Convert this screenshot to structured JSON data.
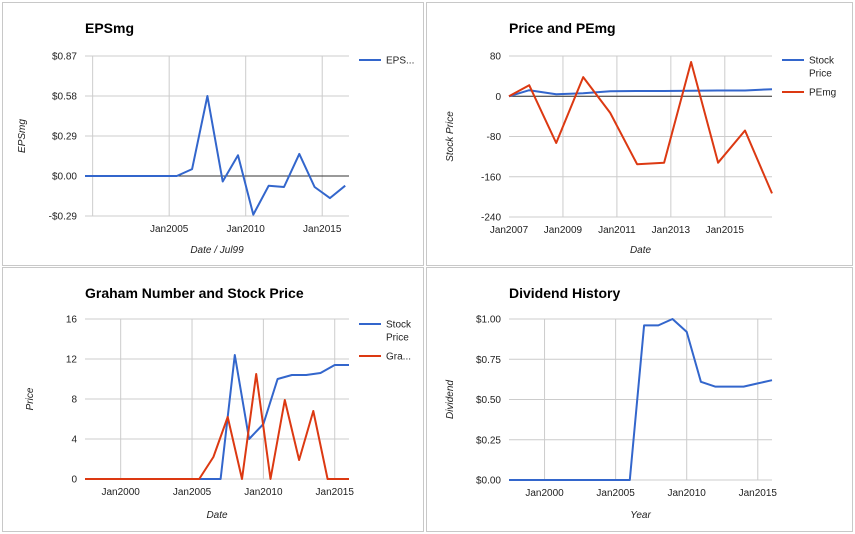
{
  "colors": {
    "blue": "#3366cc",
    "red": "#dc3912",
    "grid": "#cccccc",
    "zero": "#333333"
  },
  "chart_data": [
    {
      "type": "line",
      "title": "EPSmg",
      "xlabel": "Date / Jul99",
      "ylabel": "EPSmg",
      "legend_position": "right",
      "grid": true,
      "xlim": [
        1999.5,
        2016.75
      ],
      "ylim": [
        -0.29,
        0.87
      ],
      "yticks": [
        {
          "value": 0.87,
          "label": "$0.87"
        },
        {
          "value": 0.58,
          "label": "$0.58"
        },
        {
          "value": 0.29,
          "label": "$0.29"
        },
        {
          "value": 0.0,
          "label": "$0.00"
        },
        {
          "value": -0.29,
          "label": "-$0.29"
        }
      ],
      "xticks": [
        {
          "value": 2005,
          "label": "Jan2005"
        },
        {
          "value": 2010,
          "label": "Jan2010"
        },
        {
          "value": 2015,
          "label": "Jan2015"
        }
      ],
      "xgrid": [
        2000,
        2005,
        2010,
        2015
      ],
      "zero_line": 0,
      "series": [
        {
          "name": "EPS...",
          "color": "#3366cc",
          "x": [
            1999.5,
            2000.5,
            2001.5,
            2002.5,
            2003.5,
            2004.5,
            2005.5,
            2006.5,
            2007.5,
            2008.5,
            2009.5,
            2010.5,
            2011.5,
            2012.5,
            2013.5,
            2014.5,
            2015.5,
            2016.5
          ],
          "y": [
            0.0,
            0.0,
            0.0,
            0.0,
            0.0,
            0.0,
            0.0,
            0.05,
            0.58,
            -0.04,
            0.15,
            -0.28,
            -0.07,
            -0.08,
            0.16,
            -0.08,
            -0.16,
            -0.07
          ]
        }
      ]
    },
    {
      "type": "line",
      "title": "Price and PEmg",
      "xlabel": "Date",
      "ylabel": "Stock Price",
      "legend_position": "right",
      "grid": true,
      "xlim": [
        2007.0,
        2016.75
      ],
      "ylim": [
        -240,
        80
      ],
      "yticks": [
        {
          "value": 80,
          "label": "80"
        },
        {
          "value": 0,
          "label": "0"
        },
        {
          "value": -80,
          "label": "-80"
        },
        {
          "value": -160,
          "label": "-160"
        },
        {
          "value": -240,
          "label": "-240"
        }
      ],
      "xticks": [
        {
          "value": 2007,
          "label": "Jan2007"
        },
        {
          "value": 2009,
          "label": "Jan2009"
        },
        {
          "value": 2011,
          "label": "Jan2011"
        },
        {
          "value": 2013,
          "label": "Jan2013"
        },
        {
          "value": 2015,
          "label": "Jan2015"
        }
      ],
      "xgrid": [
        2009,
        2011,
        2013,
        2015
      ],
      "zero_line": 0,
      "series": [
        {
          "name": "Stock Price",
          "color": "#3366cc",
          "x": [
            2007.0,
            2007.75,
            2008.75,
            2009.75,
            2010.75,
            2011.75,
            2012.75,
            2013.75,
            2014.75,
            2015.75,
            2016.75
          ],
          "y": [
            0,
            12,
            4,
            6,
            10,
            10.5,
            10.5,
            11,
            11.5,
            11.5,
            14
          ]
        },
        {
          "name": "PEmg",
          "color": "#dc3912",
          "x": [
            2007.0,
            2007.75,
            2008.75,
            2009.75,
            2010.75,
            2011.75,
            2012.75,
            2013.75,
            2014.75,
            2015.75,
            2016.75
          ],
          "y": [
            0,
            22,
            -93,
            38,
            -33,
            -135,
            -132,
            68,
            -132,
            -68,
            -193
          ]
        }
      ]
    },
    {
      "type": "line",
      "title": "Graham Number and Stock Price",
      "xlabel": "Date",
      "ylabel": "Price",
      "legend_position": "right",
      "grid": true,
      "xlim": [
        1997.5,
        2016.0
      ],
      "ylim": [
        0,
        16
      ],
      "yticks": [
        {
          "value": 16,
          "label": "16"
        },
        {
          "value": 12,
          "label": "12"
        },
        {
          "value": 8,
          "label": "8"
        },
        {
          "value": 4,
          "label": "4"
        },
        {
          "value": 0,
          "label": "0"
        }
      ],
      "xticks": [
        {
          "value": 2000,
          "label": "Jan2000"
        },
        {
          "value": 2005,
          "label": "Jan2005"
        },
        {
          "value": 2010,
          "label": "Jan2010"
        },
        {
          "value": 2015,
          "label": "Jan2015"
        }
      ],
      "xgrid": [
        2000,
        2005,
        2010,
        2015
      ],
      "series": [
        {
          "name": "Stock Price",
          "color": "#3366cc",
          "x": [
            1997.5,
            2007.0,
            2008.0,
            2009.0,
            2010.0,
            2011.0,
            2012.0,
            2013.0,
            2014.0,
            2015.0,
            2016.0
          ],
          "y": [
            0,
            0,
            12.4,
            4.0,
            5.5,
            10.0,
            10.4,
            10.4,
            10.6,
            11.4,
            11.4
          ]
        },
        {
          "name": "Gra...",
          "color": "#dc3912",
          "x": [
            1997.5,
            2005.5,
            2006.5,
            2007.5,
            2008.5,
            2009.5,
            2010.5,
            2011.5,
            2012.5,
            2013.5,
            2014.5,
            2015.5,
            2016.0
          ],
          "y": [
            0,
            0,
            2.2,
            6.2,
            0,
            10.5,
            0,
            7.9,
            1.9,
            6.8,
            0,
            0,
            0
          ]
        }
      ]
    },
    {
      "type": "line",
      "title": "Dividend History",
      "xlabel": "Year",
      "ylabel": "Dividend",
      "legend_position": "none",
      "grid": true,
      "xlim": [
        1997.5,
        2016.0
      ],
      "ylim": [
        0,
        1.0
      ],
      "yticks": [
        {
          "value": 1.0,
          "label": "$1.00"
        },
        {
          "value": 0.75,
          "label": "$0.75"
        },
        {
          "value": 0.5,
          "label": "$0.50"
        },
        {
          "value": 0.25,
          "label": "$0.25"
        },
        {
          "value": 0.0,
          "label": "$0.00"
        }
      ],
      "xticks": [
        {
          "value": 2000,
          "label": "Jan2000"
        },
        {
          "value": 2005,
          "label": "Jan2005"
        },
        {
          "value": 2010,
          "label": "Jan2010"
        },
        {
          "value": 2015,
          "label": "Jan2015"
        }
      ],
      "xgrid": [
        2000,
        2005,
        2010,
        2015
      ],
      "series": [
        {
          "name": "Dividend",
          "color": "#3366cc",
          "x": [
            1997.5,
            2006.0,
            2007.0,
            2008.0,
            2009.0,
            2010.0,
            2011.0,
            2012.0,
            2013.0,
            2014.0,
            2015.0,
            2016.0
          ],
          "y": [
            0,
            0,
            0.96,
            0.96,
            1.0,
            0.92,
            0.61,
            0.58,
            0.58,
            0.58,
            0.6,
            0.62
          ]
        }
      ]
    }
  ]
}
